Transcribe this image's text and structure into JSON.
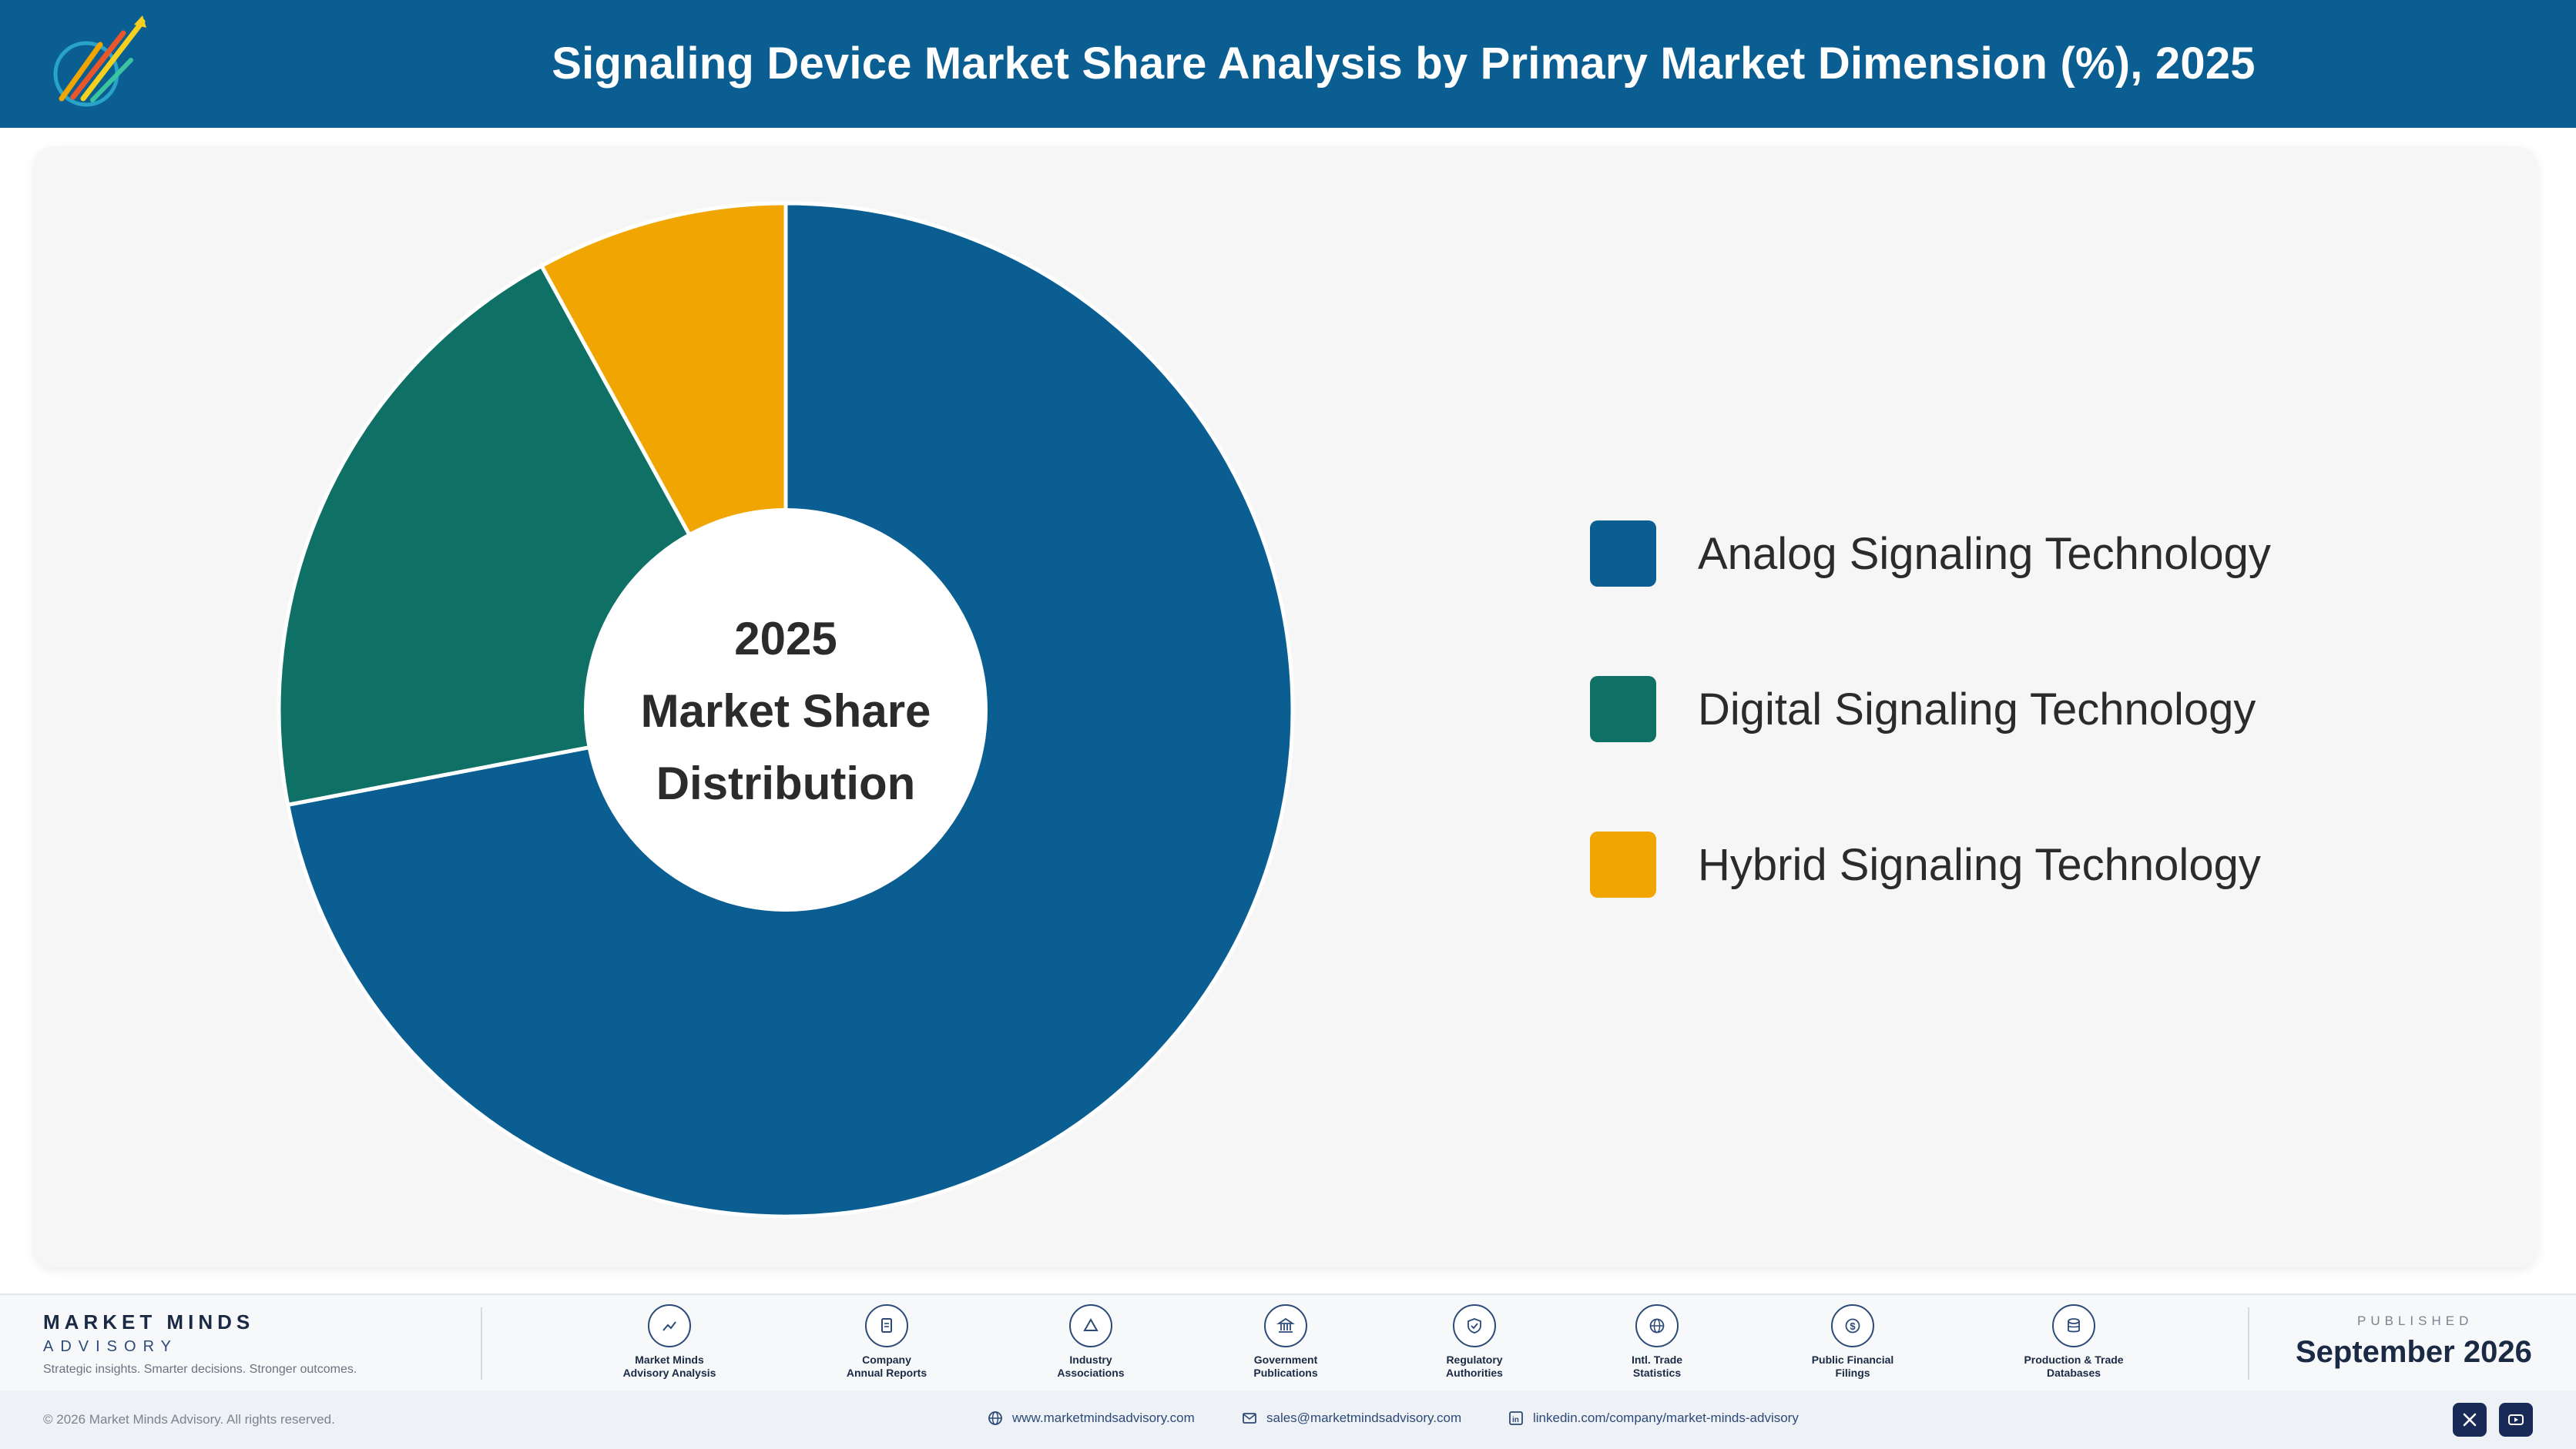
{
  "header": {
    "title": "Signaling Device Market Share Analysis by Primary Market Dimension (%), 2025",
    "logo_icon": "market-minds-logo"
  },
  "chart_data": {
    "type": "pie",
    "variant": "donut",
    "center_label_lines": [
      "2025",
      "Market Share",
      "Distribution"
    ],
    "categories": [
      "Analog Signaling Technology",
      "Digital Signaling Technology",
      "Hybrid Signaling Technology"
    ],
    "values": [
      72,
      20,
      8
    ],
    "colors": [
      "#0a5e92",
      "#0f7066",
      "#f0a500"
    ],
    "legend_position": "right",
    "show_data_labels": false
  },
  "footer": {
    "brand_name": "MARKET MINDS",
    "brand_sub": "ADVISORY",
    "tagline": "Strategic insights. Smarter decisions. Stronger outcomes.",
    "sources": [
      {
        "label": "Market Minds\nAdvisory Analysis",
        "icon": "trend-icon"
      },
      {
        "label": "Company\nAnnual Reports",
        "icon": "document-icon"
      },
      {
        "label": "Industry\nAssociations",
        "icon": "network-icon"
      },
      {
        "label": "Government\nPublications",
        "icon": "government-icon"
      },
      {
        "label": "Regulatory\nAuthorities",
        "icon": "shield-icon"
      },
      {
        "label": "Intl. Trade\nStatistics",
        "icon": "globe-icon"
      },
      {
        "label": "Public Financial\nFilings",
        "icon": "dollar-icon"
      },
      {
        "label": "Production & Trade\nDatabases",
        "icon": "database-icon"
      }
    ],
    "published_label": "PUBLISHED",
    "published_date": "September 2026",
    "copyright": "© 2026 Market Minds Advisory. All rights reserved.",
    "website": "www.marketmindsadvisory.com",
    "email": "sales@marketmindsadvisory.com",
    "linkedin": "linkedin.com/company/market-minds-advisory"
  }
}
